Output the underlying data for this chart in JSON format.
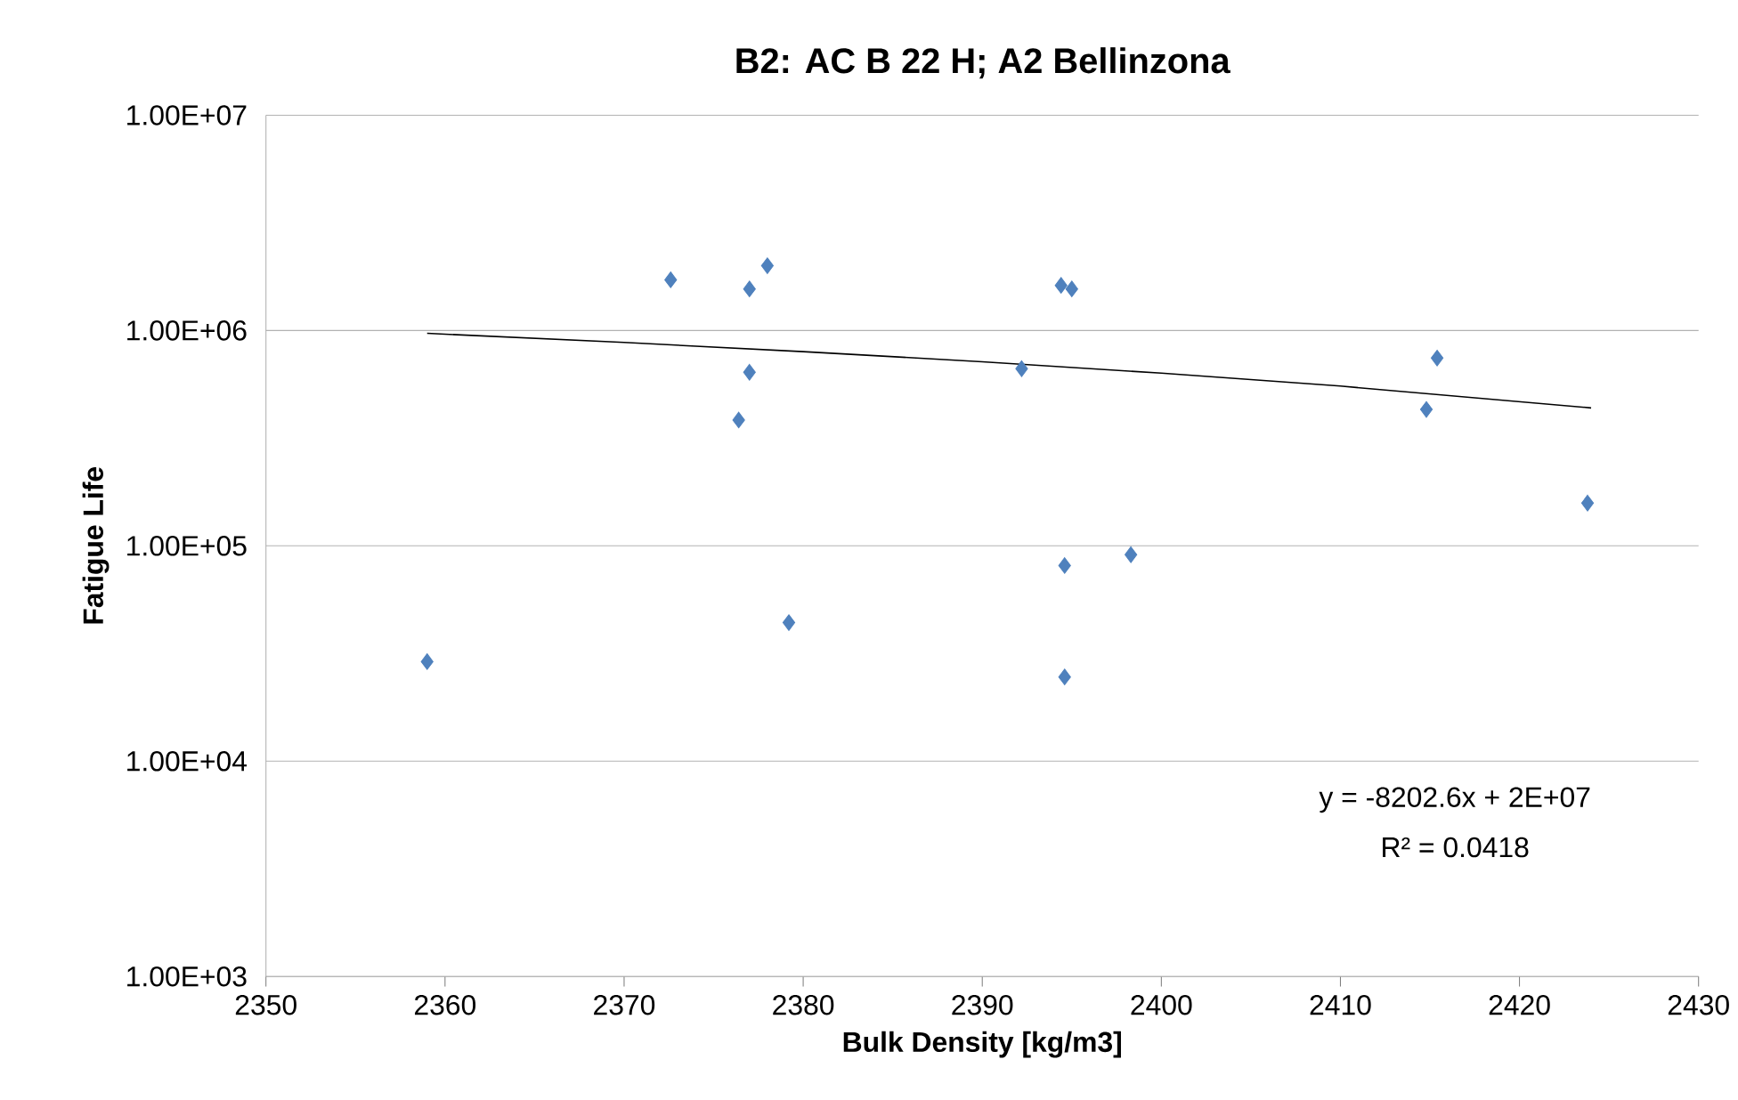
{
  "chart_data": {
    "type": "scatter",
    "title": "B2: AC B 22 H; A2 Bellinzona",
    "xlabel": "Bulk Density [kg/m3]",
    "ylabel": "Fatigue Life",
    "series": [
      {
        "color": "#4f81bd",
        "marker": "diamond",
        "x": [
          2359,
          2372.6,
          2377,
          2378,
          2377,
          2376.4,
          2379.2,
          2392.2,
          2394.4,
          2395,
          2394.6,
          2394.6,
          2398.3,
          2414.8,
          2415.4,
          2423.8
        ],
        "values": [
          29000,
          1720000,
          1560000,
          2000000,
          640000,
          384000,
          44000,
          665000,
          1620000,
          1560000,
          81000,
          24600,
          91000,
          430000,
          745000,
          158000
        ]
      },
      {
        "type": "line",
        "color": "#000000",
        "marker": "none",
        "x": [
          2359,
          2370,
          2380,
          2390,
          2400,
          2410,
          2424
        ],
        "values": [
          970000,
          880000,
          798000,
          716000,
          634000,
          552000,
          437000
        ]
      }
    ],
    "xlim": [
      2350,
      2430
    ],
    "xticks": [
      2350,
      2360,
      2370,
      2380,
      2390,
      2400,
      2410,
      2420,
      2430
    ],
    "ylim": [
      1000,
      10000000
    ],
    "yticks": [
      {
        "value": 1000,
        "label": "1.00E+03"
      },
      {
        "value": 10000,
        "label": "1.00E+04"
      },
      {
        "value": 100000,
        "label": "1.00E+05"
      },
      {
        "value": 1000000,
        "label": "1.00E+06"
      },
      {
        "value": 10000000,
        "label": "1.00E+07"
      }
    ],
    "log": "y",
    "grid": "y",
    "annotations": [
      "y = -8202.6x + 2E+07",
      "R² = 0.0418"
    ]
  }
}
